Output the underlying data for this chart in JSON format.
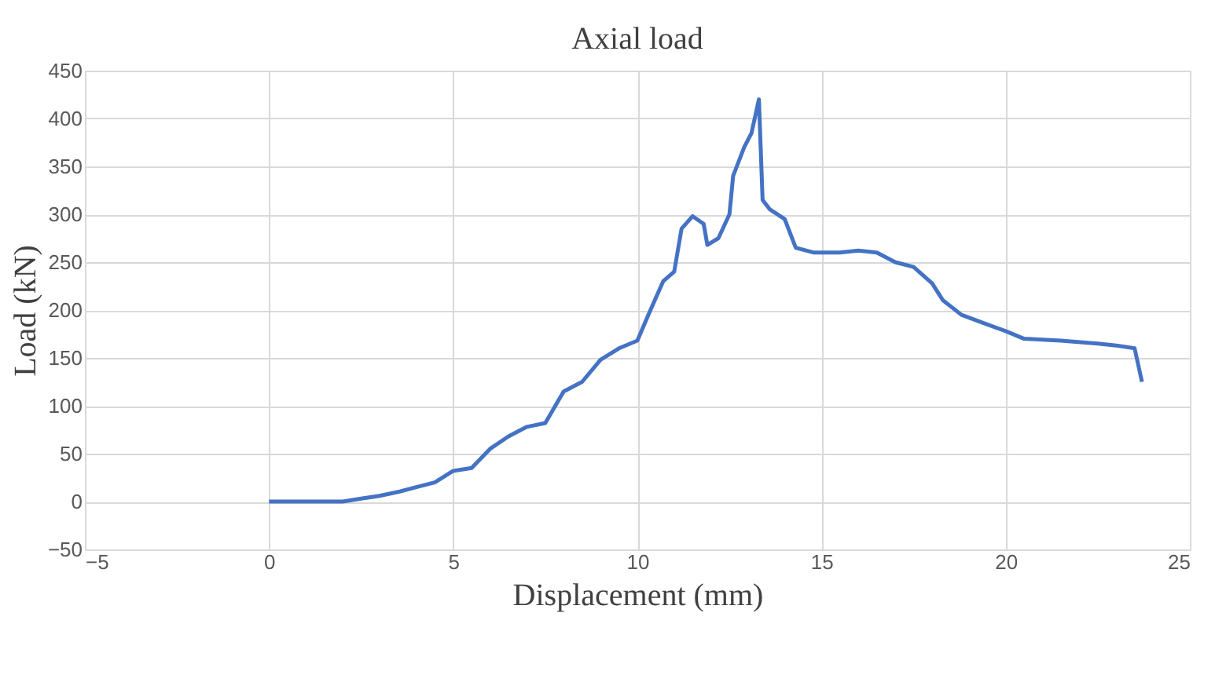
{
  "chart_data": {
    "type": "line",
    "title": "Axial load",
    "xlabel": "Displacement (mm)",
    "ylabel": "Load (kN)",
    "x": [
      0,
      2,
      2.5,
      3,
      3.5,
      4,
      4.5,
      5,
      5.5,
      6,
      6.5,
      7,
      7.5,
      8,
      8.5,
      9,
      9.5,
      10,
      10.3,
      10.7,
      11,
      11.2,
      11.5,
      11.8,
      11.9,
      12.2,
      12.5,
      12.6,
      12.9,
      13.1,
      13.3,
      13.4,
      13.6,
      14,
      14.3,
      14.8,
      15.5,
      16,
      16.5,
      17,
      17.5,
      18,
      18.3,
      18.8,
      19.5,
      20,
      20.5,
      21.5,
      22.5,
      23,
      23.5,
      23.7
    ],
    "series": [
      {
        "color": "#4472c4",
        "values": [
          0,
          0,
          3,
          6,
          10,
          15,
          20,
          32,
          35,
          55,
          68,
          78,
          82,
          115,
          125,
          148,
          160,
          168,
          195,
          230,
          240,
          285,
          298,
          290,
          268,
          275,
          300,
          340,
          370,
          385,
          420,
          315,
          305,
          295,
          265,
          260,
          260,
          262,
          260,
          250,
          245,
          228,
          210,
          195,
          185,
          178,
          170,
          168,
          165,
          163,
          160,
          125
        ]
      }
    ],
    "xlim": [
      -5,
      25
    ],
    "xticks": [
      -5,
      0,
      5,
      10,
      15,
      20,
      25
    ],
    "ylim": [
      -50,
      450
    ],
    "yticks": [
      -50,
      0,
      50,
      100,
      150,
      200,
      250,
      300,
      350,
      400,
      450
    ],
    "grid": true,
    "marker": "none",
    "line_style": "solid"
  }
}
